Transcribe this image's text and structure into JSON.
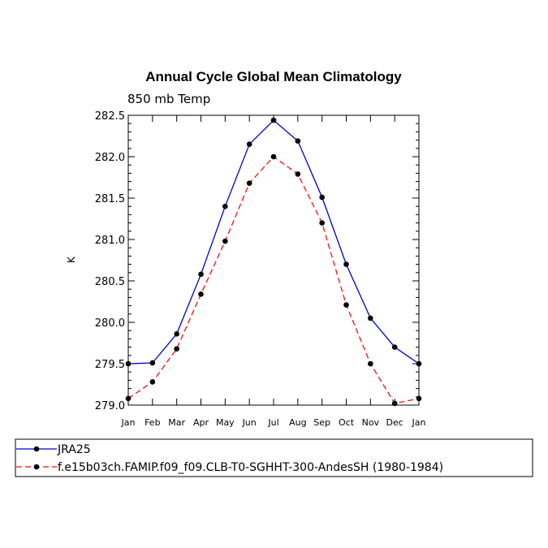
{
  "chart_data": {
    "type": "line",
    "title": "Annual Cycle Global Mean Climatology",
    "subtitle": "850 mb Temp",
    "ylabel": "K",
    "xlabel": "",
    "ylim": [
      279.0,
      282.5
    ],
    "yticks": [
      "279.0",
      "279.5",
      "280.0",
      "280.5",
      "281.0",
      "281.5",
      "282.0",
      "282.5"
    ],
    "categories": [
      "Jan",
      "Feb",
      "Mar",
      "Apr",
      "May",
      "Jun",
      "Jul",
      "Aug",
      "Sep",
      "Oct",
      "Nov",
      "Dec",
      "Jan"
    ],
    "grid": false,
    "legend_position": "bottom",
    "series": [
      {
        "name": "JRA25",
        "color": "#0000cc",
        "dash": "solid",
        "marker": "dot",
        "values": [
          279.5,
          279.51,
          279.86,
          280.58,
          281.4,
          282.15,
          282.44,
          282.19,
          281.51,
          280.7,
          280.05,
          279.7,
          279.5
        ]
      },
      {
        "name": "f.e15b03ch.FAMIP.f09_f09.CLB-T0-SGHHT-300-AndesSH (1980-1984)",
        "color": "#ee1111",
        "dash": "dashed",
        "marker": "dot",
        "values": [
          279.08,
          279.28,
          279.68,
          280.34,
          280.98,
          281.68,
          282.0,
          281.79,
          281.2,
          280.21,
          279.5,
          279.02,
          279.08
        ]
      }
    ]
  }
}
